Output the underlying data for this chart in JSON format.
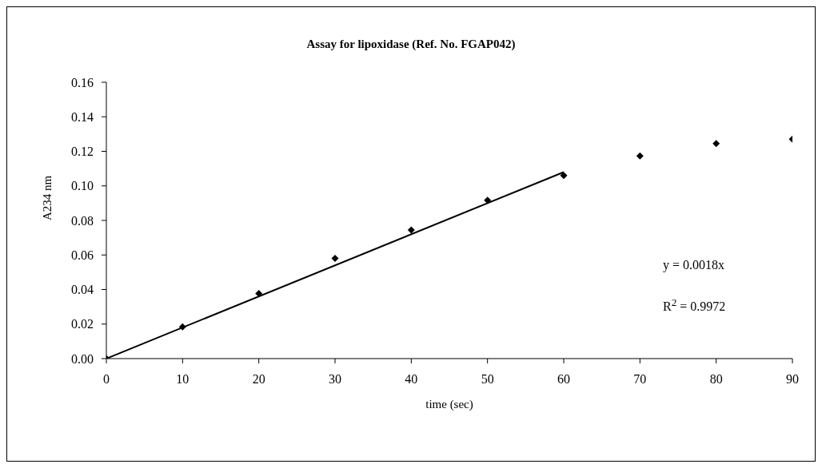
{
  "chart_data": {
    "type": "scatter",
    "title": "Assay for lipoxidase (Ref. No. FGAP042)",
    "xlabel": "time (sec)",
    "ylabel": "A234 nm",
    "series": [
      {
        "color": "#000000",
        "x": [
          0,
          10,
          20,
          30,
          40,
          50,
          60,
          70,
          80,
          90
        ],
        "values": [
          0,
          0.0184,
          0.0377,
          0.058,
          0.0745,
          0.0917,
          0.106,
          0.1173,
          0.1245,
          0.127
        ]
      },
      {
        "type": "line",
        "color": "#000000",
        "marker": "none",
        "x": [
          0,
          60
        ],
        "values": [
          0,
          0.108
        ]
      }
    ],
    "xlim": [
      0,
      90
    ],
    "xticks": [
      0,
      10,
      20,
      30,
      40,
      50,
      60,
      70,
      80,
      90
    ],
    "ylim": [
      0,
      0.16
    ],
    "yticks": [
      {
        "value": 0,
        "label": "0.00"
      },
      {
        "value": 0.02,
        "label": "0.02"
      },
      {
        "value": 0.04,
        "label": "0.04"
      },
      {
        "value": 0.06,
        "label": "0.06"
      },
      {
        "value": 0.08,
        "label": "0.08"
      },
      {
        "value": 0.1,
        "label": "0.10"
      },
      {
        "value": 0.12,
        "label": "0.12"
      },
      {
        "value": 0.14,
        "label": "0.14"
      },
      {
        "value": 0.16,
        "label": "0.16"
      }
    ],
    "marker": "diamond",
    "grid": false,
    "legend": false,
    "annotations": [
      "y = 0.0018x",
      "R$^{2}$ = 0.9972"
    ]
  }
}
